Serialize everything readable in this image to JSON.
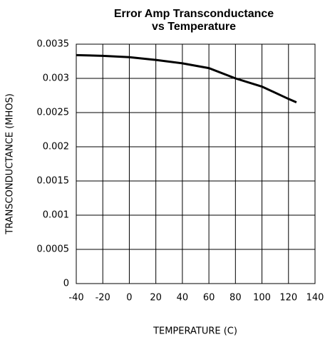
{
  "chart_data": {
    "type": "line",
    "title": [
      "Error Amp Transconductance",
      "vs Temperature"
    ],
    "x_label": "TEMPERATURE (C)",
    "y_label": "TRANSCONDUCTANCE (MHOS)",
    "x": [
      -40,
      -20,
      0,
      20,
      40,
      60,
      80,
      100,
      120,
      126
    ],
    "series": [
      {
        "color": "#000000",
        "values": [
          0.00334,
          0.00333,
          0.00331,
          0.00327,
          0.00322,
          0.00315,
          0.003,
          0.00288,
          0.0027,
          0.00265
        ]
      }
    ],
    "xlim": [
      -40,
      140
    ],
    "xticks": [
      -40,
      -20,
      0,
      20,
      40,
      60,
      80,
      100,
      120,
      140
    ],
    "ylim": [
      0,
      0.0035
    ],
    "yticks": [
      0,
      0.0005,
      0.001,
      0.0015,
      0.002,
      0.0025,
      0.003,
      0.0035
    ],
    "grid": true
  }
}
